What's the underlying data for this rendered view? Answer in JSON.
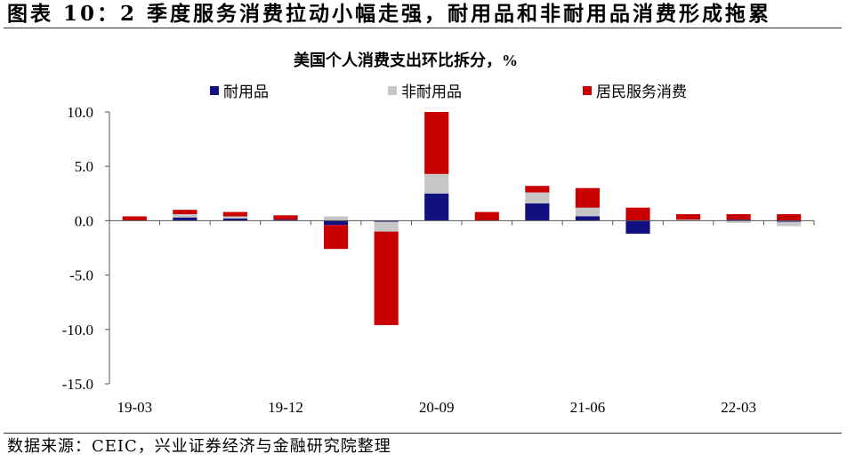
{
  "figure": {
    "title": "图表 10：2 季度服务消费拉动小幅走强，耐用品和非耐用品消费形成拖累",
    "source": "数据来源：CEIC，兴业证券经济与金融研究院整理"
  },
  "chart_data": {
    "type": "bar",
    "stacked": true,
    "title": "美国个人消费支出环比拆分，%",
    "xlabel": "",
    "ylabel": "",
    "legend_position": "top",
    "grid": false,
    "categories": [
      "19-03",
      "",
      "",
      "19-12",
      "",
      "",
      "20-09",
      "",
      "",
      "21-06",
      "",
      "",
      "22-03",
      ""
    ],
    "ylim": [
      -15,
      10
    ],
    "yticks": [
      10,
      5,
      0,
      -5,
      -10,
      -15
    ],
    "ytick_labels": [
      "10.0",
      "5.0",
      "0.0",
      "-5.0",
      "-10.0",
      "-15.0"
    ],
    "series": [
      {
        "name": "耐用品",
        "color": "#101080",
        "values": [
          0.0,
          0.3,
          0.2,
          0.1,
          -0.4,
          -0.1,
          2.5,
          0.0,
          1.6,
          0.4,
          -1.2,
          0.0,
          0.1,
          -0.1
        ]
      },
      {
        "name": "非耐用品",
        "color": "#c6c6c6",
        "values": [
          0.0,
          0.3,
          0.2,
          0.0,
          0.4,
          -0.9,
          1.8,
          0.0,
          1.0,
          0.8,
          0.0,
          0.1,
          -0.2,
          -0.4
        ]
      },
      {
        "name": "居民服务消费",
        "color": "#c80000",
        "values": [
          0.4,
          0.4,
          0.4,
          0.4,
          -2.2,
          -8.6,
          5.7,
          0.8,
          0.6,
          1.8,
          1.2,
          0.5,
          0.5,
          0.6
        ]
      }
    ]
  }
}
